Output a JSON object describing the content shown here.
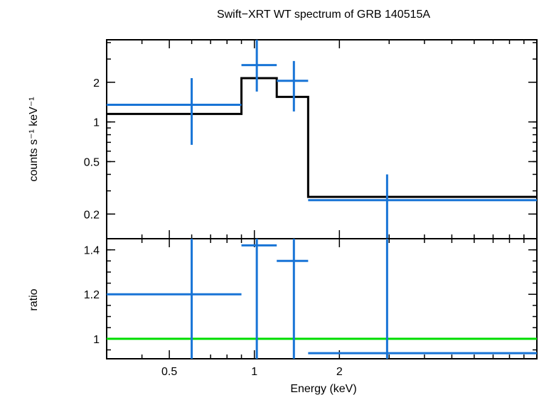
{
  "title": "Swift−XRT WT spectrum of GRB 140515A",
  "colors": {
    "data": "#1874d6",
    "model": "#000000",
    "unity": "#00dd00",
    "frame": "#000000"
  },
  "chart_data": [
    {
      "type": "scatter",
      "panel": "spectrum",
      "ylabel": "counts s⁻¹ keV⁻¹",
      "xscale": "log",
      "yscale": "log",
      "xlim": [
        0.3,
        10
      ],
      "ylim": [
        0.13,
        4.2
      ],
      "yticks": [
        {
          "value": 0.2,
          "label": "0.2"
        },
        {
          "value": 0.5,
          "label": "0.5"
        },
        {
          "value": 1,
          "label": "1"
        },
        {
          "value": 2,
          "label": "2"
        }
      ],
      "data_points": [
        {
          "x_lo": 0.3,
          "x_hi": 0.9,
          "x": 0.6,
          "y": 1.35,
          "y_lo": 0.67,
          "y_hi": 2.15
        },
        {
          "x_lo": 0.9,
          "x_hi": 1.2,
          "x": 1.02,
          "y": 2.7,
          "y_lo": 1.7,
          "y_hi": 4.2
        },
        {
          "x_lo": 1.2,
          "x_hi": 1.55,
          "x": 1.38,
          "y": 2.05,
          "y_lo": 1.2,
          "y_hi": 2.9
        },
        {
          "x_lo": 1.55,
          "x_hi": 10,
          "x": 2.95,
          "y": 0.255,
          "y_lo": 0.13,
          "y_hi": 0.4
        }
      ],
      "model": [
        {
          "x_lo": 0.3,
          "x_hi": 0.9,
          "y": 1.15
        },
        {
          "x_lo": 0.9,
          "x_hi": 1.2,
          "y": 2.15
        },
        {
          "x_lo": 1.2,
          "x_hi": 1.55,
          "y": 1.55
        },
        {
          "x_lo": 1.55,
          "x_hi": 10,
          "y": 0.27
        }
      ]
    },
    {
      "type": "scatter",
      "panel": "ratio",
      "xlabel": "Energy (keV)",
      "ylabel": "ratio",
      "xscale": "log",
      "xlim": [
        0.3,
        10
      ],
      "ylim": [
        0.91,
        1.45
      ],
      "xticks": [
        {
          "value": 0.5,
          "label": "0.5"
        },
        {
          "value": 1,
          "label": "1"
        },
        {
          "value": 2,
          "label": "2"
        }
      ],
      "yticks": [
        {
          "value": 1,
          "label": "1"
        },
        {
          "value": 1.2,
          "label": "1.2"
        },
        {
          "value": 1.4,
          "label": "1.4"
        }
      ],
      "unity_line": 1,
      "data_points": [
        {
          "x_lo": 0.3,
          "x_hi": 0.9,
          "x": 0.6,
          "y": 1.2,
          "y_lo": 0.91,
          "y_hi": 1.45
        },
        {
          "x_lo": 0.9,
          "x_hi": 1.2,
          "x": 1.02,
          "y": 1.42,
          "y_lo": 0.91,
          "y_hi": 1.45
        },
        {
          "x_lo": 1.2,
          "x_hi": 1.55,
          "x": 1.38,
          "y": 1.35,
          "y_lo": 0.91,
          "y_hi": 1.45
        },
        {
          "x_lo": 1.55,
          "x_hi": 10,
          "x": 2.95,
          "y": 0.935,
          "y_lo": 0.91,
          "y_hi": 1.45
        }
      ]
    }
  ]
}
